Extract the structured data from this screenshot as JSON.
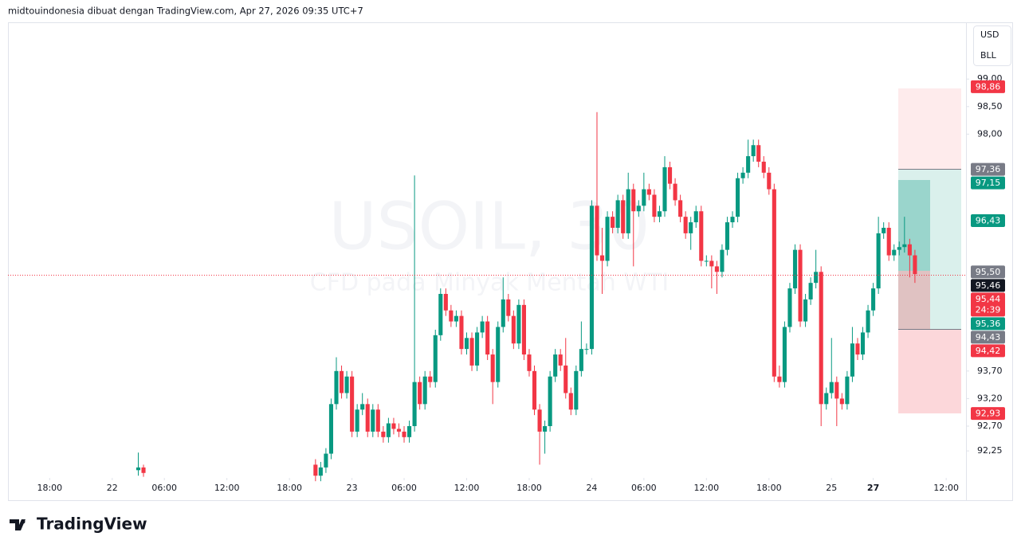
{
  "chart_data": {
    "type": "candlestick",
    "caption": "midtouindonesia dibuat dengan TradingView.com, Apr 27, 2026 09:35 UTC+7",
    "title": "USOIL, 30",
    "subtitle": "CFD pada Minyak Mentah WTI",
    "currency": "USD",
    "unit": "BLL",
    "brand": "TradingView",
    "up_color": "#089981",
    "down_color": "#f23645",
    "x": [
      17,
      18,
      51,
      52,
      53,
      54,
      55,
      56,
      57,
      58,
      59,
      60,
      61,
      62,
      63,
      64,
      65,
      66,
      67,
      68,
      69,
      70,
      71,
      72,
      73,
      74,
      75,
      76,
      77,
      78,
      79,
      80,
      81,
      82,
      83,
      84,
      85,
      86,
      87,
      88,
      89,
      90,
      91,
      92,
      93,
      94,
      95,
      96,
      97,
      98,
      99,
      100,
      101,
      102,
      103,
      104,
      105,
      106,
      107,
      108,
      109,
      110,
      111,
      112,
      113,
      114,
      115,
      116,
      117,
      118,
      119,
      120,
      121,
      122,
      123,
      124,
      125,
      126,
      127,
      128,
      129,
      130,
      131,
      132,
      133,
      134,
      135,
      136,
      137,
      138,
      139,
      140,
      141,
      142,
      143,
      144,
      145,
      146,
      147,
      148,
      149,
      150,
      151,
      152,
      153,
      154,
      155,
      156,
      157,
      158,
      159,
      160,
      161,
      162,
      163,
      164,
      165,
      166
    ],
    "open": [
      91.9,
      91.95,
      92.0,
      91.8,
      91.95,
      92.2,
      93.1,
      93.7,
      93.3,
      93.6,
      92.6,
      93.0,
      93.1,
      92.6,
      93.0,
      92.6,
      92.5,
      92.75,
      92.65,
      92.6,
      92.5,
      92.7,
      93.5,
      93.1,
      93.6,
      93.5,
      94.35,
      95.1,
      94.8,
      94.6,
      94.7,
      94.1,
      94.3,
      93.8,
      94.4,
      94.6,
      94.0,
      93.5,
      94.5,
      95.0,
      94.7,
      94.2,
      94.9,
      94.0,
      93.7,
      93.0,
      92.6,
      92.7,
      93.6,
      94.0,
      93.8,
      93.3,
      93.0,
      93.7,
      94.1,
      94.1,
      96.7,
      95.8,
      95.7,
      96.5,
      96.3,
      96.8,
      96.2,
      97.0,
      96.6,
      96.7,
      97.0,
      96.9,
      96.5,
      96.6,
      97.4,
      97.1,
      96.8,
      96.5,
      96.2,
      96.4,
      96.6,
      95.7,
      95.7,
      95.6,
      95.5,
      95.9,
      96.4,
      96.5,
      97.2,
      97.3,
      97.6,
      97.8,
      97.5,
      97.3,
      97.0,
      93.6,
      93.5,
      94.5,
      95.2,
      95.9,
      94.6,
      95.0,
      95.3,
      95.5,
      93.1,
      93.3,
      93.5,
      93.2,
      93.1,
      93.6,
      94.2,
      94.0,
      94.4,
      94.8,
      95.2,
      96.2,
      96.3,
      95.8,
      95.9,
      95.95,
      96.0,
      95.8
    ],
    "high": [
      92.22,
      92.0,
      92.1,
      92.05,
      92.3,
      93.2,
      93.95,
      93.8,
      93.7,
      93.7,
      93.1,
      93.3,
      93.2,
      93.1,
      93.1,
      92.7,
      92.85,
      92.85,
      92.75,
      92.7,
      92.8,
      97.25,
      93.6,
      93.7,
      93.7,
      94.45,
      95.2,
      95.2,
      94.9,
      94.8,
      94.8,
      94.4,
      94.4,
      94.5,
      94.7,
      94.7,
      94.1,
      94.6,
      95.4,
      95.1,
      94.8,
      95.0,
      95.0,
      94.1,
      93.8,
      93.1,
      92.8,
      93.7,
      94.1,
      94.1,
      94.3,
      93.4,
      93.8,
      94.6,
      94.2,
      96.8,
      98.4,
      96.3,
      96.6,
      96.6,
      96.9,
      96.9,
      97.3,
      97.1,
      96.8,
      97.3,
      97.1,
      97.0,
      96.7,
      97.6,
      97.5,
      97.2,
      96.9,
      96.6,
      96.5,
      96.7,
      96.7,
      95.8,
      95.8,
      95.7,
      96.0,
      96.5,
      96.6,
      97.3,
      97.4,
      97.9,
      97.9,
      97.9,
      97.6,
      97.4,
      97.1,
      93.8,
      94.6,
      95.3,
      96.0,
      96.0,
      95.1,
      95.4,
      95.9,
      95.6,
      93.4,
      94.3,
      93.6,
      93.3,
      93.7,
      94.5,
      94.3,
      94.5,
      94.9,
      95.3,
      96.5,
      96.4,
      96.4,
      96.0,
      96.05,
      96.5,
      96.1,
      95.9
    ],
    "low": [
      91.8,
      91.78,
      91.7,
      91.7,
      91.85,
      92.1,
      93.0,
      93.2,
      93.2,
      92.5,
      92.5,
      92.9,
      92.5,
      92.5,
      92.5,
      92.4,
      92.4,
      92.55,
      92.5,
      92.4,
      92.4,
      92.6,
      93.0,
      93.0,
      93.4,
      93.4,
      94.25,
      94.7,
      94.5,
      94.5,
      94.0,
      94.0,
      93.7,
      93.7,
      94.3,
      93.9,
      93.1,
      93.4,
      94.4,
      94.6,
      94.1,
      94.1,
      93.9,
      93.6,
      92.9,
      92.0,
      92.2,
      92.6,
      93.5,
      93.7,
      93.2,
      92.9,
      92.9,
      93.6,
      94.0,
      94.0,
      95.7,
      95.1,
      95.6,
      96.2,
      96.2,
      96.1,
      96.1,
      95.6,
      96.5,
      96.6,
      96.8,
      96.4,
      96.4,
      96.5,
      97.0,
      96.7,
      96.4,
      96.1,
      95.9,
      96.3,
      95.6,
      95.6,
      95.2,
      95.1,
      95.4,
      95.8,
      96.3,
      96.4,
      97.1,
      97.2,
      97.5,
      97.4,
      97.2,
      96.9,
      93.5,
      93.4,
      93.4,
      94.4,
      95.1,
      94.5,
      94.5,
      94.9,
      95.2,
      92.7,
      93.0,
      93.2,
      92.7,
      93.0,
      93.0,
      93.5,
      93.9,
      93.9,
      94.3,
      94.7,
      95.1,
      96.1,
      95.7,
      95.7,
      95.8,
      95.85,
      95.4,
      95.3
    ],
    "close": [
      91.95,
      91.85,
      91.8,
      91.95,
      92.2,
      93.1,
      93.7,
      93.3,
      93.6,
      92.6,
      93.0,
      93.1,
      92.6,
      93.0,
      92.6,
      92.5,
      92.75,
      92.65,
      92.6,
      92.5,
      92.7,
      93.5,
      93.1,
      93.6,
      93.5,
      94.35,
      95.1,
      94.8,
      94.6,
      94.7,
      94.1,
      94.3,
      93.8,
      94.4,
      94.6,
      94.0,
      93.5,
      94.5,
      95.0,
      94.7,
      94.2,
      94.9,
      94.0,
      93.7,
      93.0,
      92.6,
      92.7,
      93.6,
      94.0,
      93.8,
      93.3,
      93.0,
      93.7,
      94.1,
      94.1,
      96.7,
      95.8,
      95.7,
      96.5,
      96.3,
      96.8,
      96.2,
      97.0,
      96.6,
      96.7,
      97.0,
      96.9,
      96.5,
      96.6,
      97.4,
      97.1,
      96.8,
      96.5,
      96.2,
      96.4,
      96.6,
      95.7,
      95.7,
      95.6,
      95.5,
      95.9,
      96.4,
      96.5,
      97.2,
      97.3,
      97.6,
      97.8,
      97.5,
      97.3,
      97.0,
      93.6,
      93.5,
      94.5,
      95.2,
      95.9,
      94.6,
      95.0,
      95.3,
      95.5,
      93.1,
      93.3,
      93.5,
      93.2,
      93.1,
      93.6,
      94.2,
      94.0,
      94.4,
      94.8,
      95.2,
      96.2,
      96.3,
      95.8,
      95.9,
      95.95,
      96.0,
      95.8,
      95.46
    ],
    "xlim": [
      -8,
      175.8
    ],
    "xticks": [
      {
        "value": 0,
        "label": "18:00"
      },
      {
        "value": 12,
        "label": "22"
      },
      {
        "value": 22,
        "label": "06:00"
      },
      {
        "value": 34,
        "label": "12:00"
      },
      {
        "value": 46,
        "label": "18:00"
      },
      {
        "value": 58,
        "label": "23"
      },
      {
        "value": 68,
        "label": "06:00"
      },
      {
        "value": 80,
        "label": "12:00"
      },
      {
        "value": 92,
        "label": "18:00"
      },
      {
        "value": 104,
        "label": "24"
      },
      {
        "value": 114,
        "label": "06:00"
      },
      {
        "value": 126,
        "label": "12:00"
      },
      {
        "value": 138,
        "label": "18:00"
      },
      {
        "value": 150,
        "label": "25"
      },
      {
        "value": 158,
        "label": "27"
      },
      {
        "value": 172,
        "label": "12:00"
      }
    ],
    "ylim": [
      91.76,
      100.03
    ],
    "yticks": [
      {
        "value": 99,
        "label": "99,00"
      },
      {
        "value": 98.5,
        "label": "98,50"
      },
      {
        "value": 98,
        "label": "98,00"
      },
      {
        "value": 93.7,
        "label": "93,70"
      },
      {
        "value": 93.2,
        "label": "93,20"
      },
      {
        "value": 92.7,
        "label": "92,70"
      },
      {
        "value": 92.25,
        "label": "92,25"
      }
    ],
    "price_tags": [
      {
        "value": 98.86,
        "label": "98,86",
        "color": "#f23645"
      },
      {
        "value": 97.36,
        "label": "97,36",
        "color": "#787b86"
      },
      {
        "value": 97.15,
        "label": "97,15",
        "color": "#089981"
      },
      {
        "value": 96.43,
        "label": "96,43",
        "color": "#089981"
      },
      {
        "value": 95.5,
        "label": "95,50",
        "color": "#787b86"
      },
      {
        "value": 95.46,
        "label": "95,46",
        "color": "#131722"
      },
      {
        "value": 95.44,
        "label": "95,44",
        "color": "#f23645",
        "countdown": "24:39"
      },
      {
        "value": 95.36,
        "label": "95,36",
        "color": "#089981"
      },
      {
        "value": 94.43,
        "label": "94,43",
        "color": "#787b86"
      },
      {
        "value": 94.42,
        "label": "94,42",
        "color": "#f23645"
      },
      {
        "value": 92.93,
        "label": "92,93",
        "color": "#f23645"
      }
    ],
    "last_price_line": 6
  }
}
